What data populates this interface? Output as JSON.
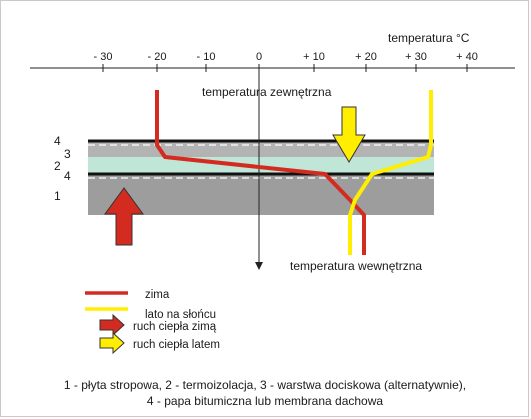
{
  "axis": {
    "title": "temperatura",
    "unit": "°C",
    "ticks": [
      "- 30",
      "- 20",
      "- 10",
      "0",
      "+ 10",
      "+ 20",
      "+ 30",
      "+ 40"
    ]
  },
  "layers": {
    "numbers": [
      "4",
      "3",
      "2",
      "4",
      "1"
    ]
  },
  "labels": {
    "outside": "temperatura zewnętrzna",
    "inside": "temperatura wewnętrzna"
  },
  "legend": {
    "winter": "zima",
    "summer": "lato na słońcu",
    "heat_winter": "ruch ciepła zimą",
    "heat_summer": "ruch ciepła latem"
  },
  "caption": {
    "line1": "1 - płyta stropowa, 2 - termoizolacja, 3 - warstwa dociskowa (alternatywnie),",
    "line2": "4 - papa bitumiczna lub membrana dachowa"
  },
  "colors": {
    "winter": "#d42b20",
    "summer": "#ffee00",
    "slab": "#9d9d9d",
    "insulation": "#bfe6d6",
    "cover_layer": "#b3b3b3",
    "membrane": "#111111"
  }
}
